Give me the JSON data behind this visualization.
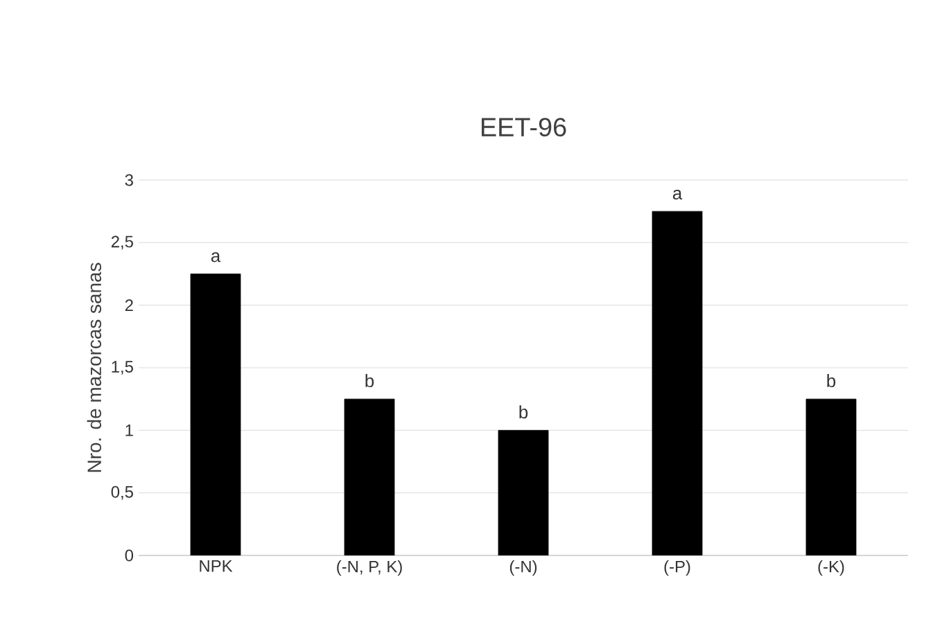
{
  "chart_data": {
    "type": "bar",
    "title": "EET-96",
    "ylabel": "Nro. de mazorcas sanas",
    "categories": [
      "NPK",
      "(-N, P, K)",
      "(-N)",
      "(-P)",
      "(-K)"
    ],
    "values": [
      2.25,
      1.25,
      1.0,
      2.75,
      1.25
    ],
    "value_labels": [
      "a",
      "b",
      "b",
      "a",
      "b"
    ],
    "color": "#000000",
    "ylim": [
      0,
      3
    ],
    "yticks": [
      0,
      {
        "value": 0.5,
        "label": "0,5"
      },
      1,
      {
        "value": 1.5,
        "label": "1,5"
      },
      2,
      {
        "value": 2.5,
        "label": "2,5"
      },
      3
    ],
    "grid": "y"
  }
}
